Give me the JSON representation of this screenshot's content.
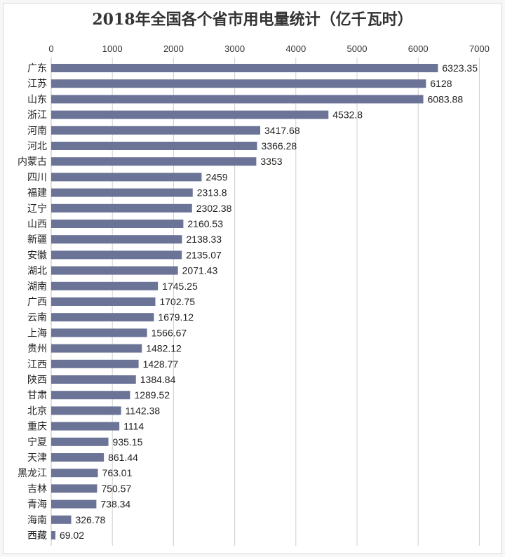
{
  "chart_data": {
    "type": "bar",
    "orientation": "horizontal",
    "title": "2018年全国各个省市用电量统计（亿千瓦时）",
    "xlim": [
      0,
      7000
    ],
    "xticks": [
      0,
      1000,
      2000,
      3000,
      4000,
      5000,
      6000,
      7000
    ],
    "axis_position": "top",
    "grid": true,
    "bar_color": "#6b7396",
    "categories": [
      "广东",
      "江苏",
      "山东",
      "浙江",
      "河南",
      "河北",
      "内蒙古",
      "四川",
      "福建",
      "辽宁",
      "山西",
      "新疆",
      "安徽",
      "湖北",
      "湖南",
      "广西",
      "云南",
      "上海",
      "贵州",
      "江西",
      "陕西",
      "甘肃",
      "北京",
      "重庆",
      "宁夏",
      "天津",
      "黑龙江",
      "吉林",
      "青海",
      "海南",
      "西藏"
    ],
    "values": [
      6323.35,
      6128,
      6083.88,
      4532.8,
      3417.68,
      3366.28,
      3353,
      2459,
      2313.8,
      2302.38,
      2160.53,
      2138.33,
      2135.07,
      2071.43,
      1745.25,
      1702.75,
      1679.12,
      1566.67,
      1482.12,
      1428.77,
      1384.84,
      1289.52,
      1142.38,
      1114,
      935.15,
      861.44,
      763.01,
      750.57,
      738.34,
      326.78,
      69.02
    ]
  }
}
